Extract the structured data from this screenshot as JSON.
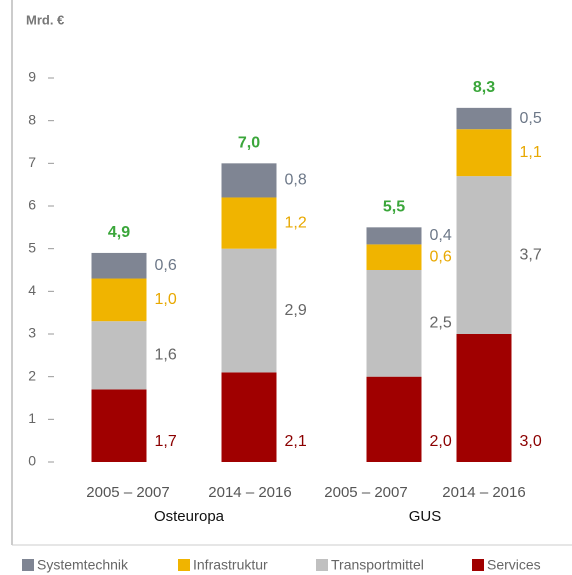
{
  "chart_data": {
    "type": "stacked_bar",
    "y_label": "Mrd. €",
    "categories": [
      "2005 – 2007",
      "2014 – 2016",
      "2005 – 2007",
      "2014 – 2016"
    ],
    "groups": [
      "Osteuropa",
      "GUS"
    ],
    "ylim": [
      0,
      9
    ],
    "yticks": [
      0,
      1,
      2,
      3,
      4,
      5,
      6,
      7,
      8,
      9
    ],
    "series": [
      {
        "name": "Services",
        "color": "#a00000",
        "label_color": "#8b0000",
        "values": [
          1.7,
          2.1,
          2.0,
          3.0
        ],
        "value_labels": [
          "1,7",
          "2,1",
          "2,0",
          "3,0"
        ]
      },
      {
        "name": "Transportmittel",
        "color": "#c0c0c0",
        "label_color": "#666666",
        "values": [
          1.6,
          2.9,
          2.5,
          3.7
        ],
        "value_labels": [
          "1,6",
          "2,9",
          "2,5",
          "3,7"
        ]
      },
      {
        "name": "Infrastruktur",
        "color": "#f0b400",
        "label_color": "#e8a800",
        "values": [
          1.0,
          1.2,
          0.6,
          1.1
        ],
        "value_labels": [
          "1,0",
          "1,2",
          "0,6",
          "1,1"
        ]
      },
      {
        "name": "Systemtechnik",
        "color": "#7f8593",
        "label_color": "#6d7888",
        "values": [
          0.6,
          0.8,
          0.4,
          0.5
        ],
        "value_labels": [
          "0,6",
          "0,8",
          "0,4",
          "0,5"
        ]
      }
    ],
    "totals": [
      4.9,
      7.0,
      5.5,
      8.3
    ],
    "total_labels": [
      "4,9",
      "7,0",
      "5,5",
      "8,3"
    ]
  }
}
